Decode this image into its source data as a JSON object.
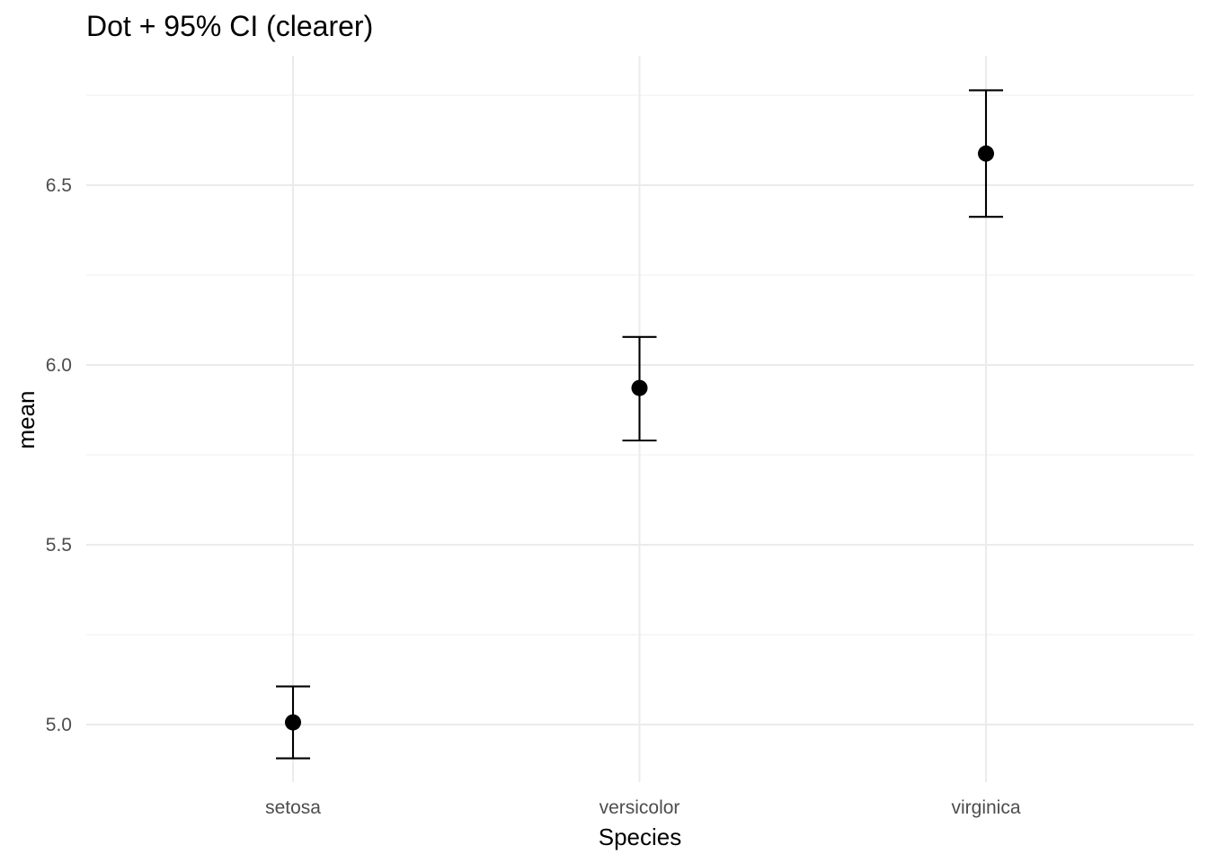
{
  "chart_data": {
    "type": "scatter",
    "title": "Dot + 95% CI (clearer)",
    "xlabel": "Species",
    "ylabel": "mean",
    "categories": [
      "setosa",
      "versicolor",
      "virginica"
    ],
    "values": [
      5.006,
      5.936,
      6.588
    ],
    "ci_lower": [
      4.906,
      5.79,
      6.412
    ],
    "ci_upper": [
      5.106,
      6.078,
      6.764
    ],
    "ylim": [
      4.84,
      6.86
    ],
    "y_ticks": [
      5.0,
      5.5,
      6.0,
      6.5
    ],
    "y_tick_labels": [
      "5.0",
      "5.5",
      "6.0",
      "6.5"
    ],
    "grid": true,
    "legend": "none"
  }
}
